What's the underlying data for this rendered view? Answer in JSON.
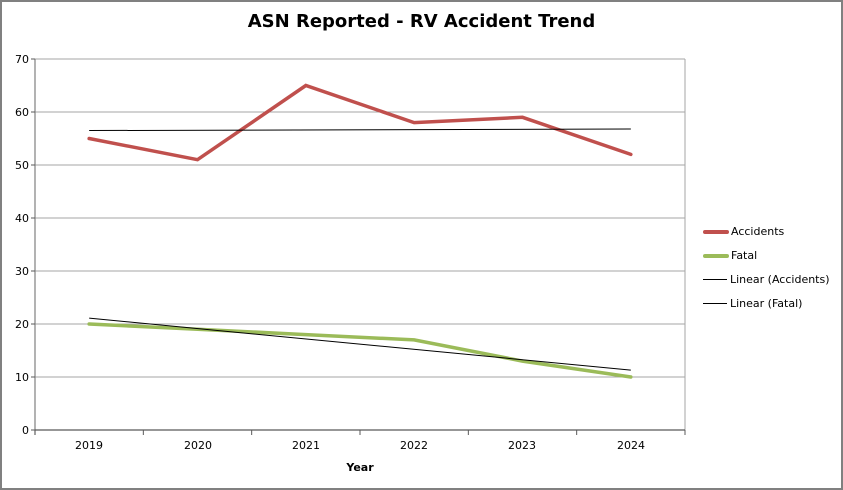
{
  "frame": {
    "bg": "#FFFFFF",
    "border_color": "#808080"
  },
  "chart_data": {
    "type": "line",
    "title": "ASN Reported - RV Accident Trend",
    "xlabel": "Year",
    "ylabel": "",
    "categories": [
      "2019",
      "2020",
      "2021",
      "2022",
      "2023",
      "2024"
    ],
    "y_axis_ticks_top_to_bottom": [
      "70",
      "60",
      "50",
      "40",
      "30",
      "20",
      "10",
      "0"
    ],
    "ylim": [
      0,
      70
    ],
    "y_tick_interval": 10,
    "grid": true,
    "legend_position": "right",
    "series": [
      {
        "name": "Accidents",
        "kind": "line",
        "color": "#C0504D",
        "stroke_width": 3.5,
        "values": [
          55,
          51,
          65,
          58,
          59,
          52
        ]
      },
      {
        "name": "Fatal",
        "kind": "line",
        "color": "#9BBB59",
        "stroke_width": 3.5,
        "values": [
          20,
          19,
          18,
          17,
          13,
          10
        ]
      },
      {
        "name": "Linear (Accidents)",
        "kind": "trendline",
        "color": "#000000",
        "stroke_width": 1,
        "endpoint_values": [
          56.5,
          56.8
        ]
      },
      {
        "name": "Linear (Fatal)",
        "kind": "trendline",
        "color": "#000000",
        "stroke_width": 1,
        "endpoint_values": [
          21.1,
          11.3
        ]
      }
    ],
    "colors": {
      "gridline": "#A6A6A6",
      "axis_line": "#808080",
      "x_axis_line": "#595959",
      "tick_mark": "#595959",
      "text": "#000000"
    }
  }
}
